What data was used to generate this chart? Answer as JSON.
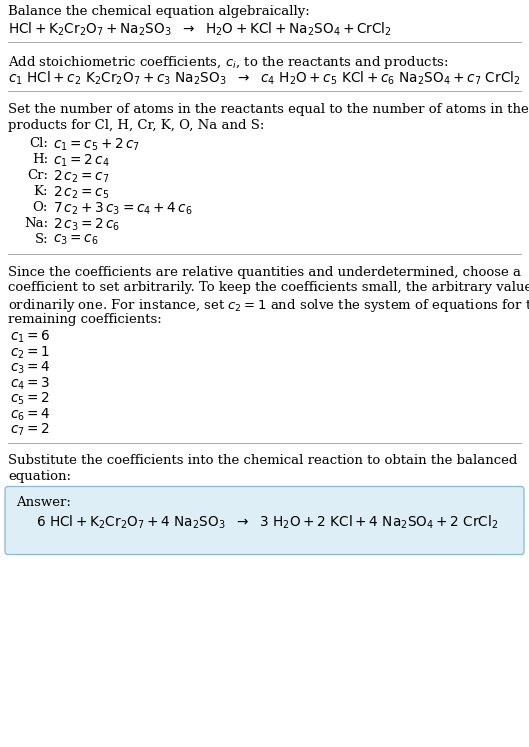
{
  "bg_color": "#ffffff",
  "answer_bg": "#deeef6",
  "answer_border": "#88bbcc",
  "separator_color": "#aaaaaa",
  "fs": 9.5,
  "fs_m": 9.8,
  "lh": 15.5,
  "ml": 8,
  "mr": 521,
  "fig_w": 5.29,
  "fig_h": 7.47,
  "dpi": 100,
  "serif": "DejaVu Serif",
  "s1_header": "Balance the chemical equation algebraically:",
  "s1_eq": "$\\mathrm{HCl + K_2Cr_2O_7 + Na_2SO_3}\\ \\ \\rightarrow\\ \\ \\mathrm{H_2O + KCl + Na_2SO_4 + CrCl_2}$",
  "s2_header": "Add stoichiometric coefficients, $c_i$, to the reactants and products:",
  "s2_eq": "$c_1\\ \\mathrm{HCl} + c_2\\ \\mathrm{K_2Cr_2O_7} + c_3\\ \\mathrm{Na_2SO_3}\\ \\ \\rightarrow\\ \\ c_4\\ \\mathrm{H_2O} + c_5\\ \\mathrm{KCl} + c_6\\ \\mathrm{Na_2SO_4} + c_7\\ \\mathrm{CrCl_2}$",
  "s3_h1": "Set the number of atoms in the reactants equal to the number of atoms in the",
  "s3_h2": "products for Cl, H, Cr, K, O, Na and S:",
  "s3_eqs": [
    {
      "label": "Cl:",
      "eq": "$c_1 = c_5 + 2\\,c_7$"
    },
    {
      "label": "H:",
      "eq": "$c_1 = 2\\,c_4$"
    },
    {
      "label": "Cr:",
      "eq": "$2\\,c_2 = c_7$"
    },
    {
      "label": "K:",
      "eq": "$2\\,c_2 = c_5$"
    },
    {
      "label": "O:",
      "eq": "$7\\,c_2 + 3\\,c_3 = c_4 + 4\\,c_6$"
    },
    {
      "label": "Na:",
      "eq": "$2\\,c_3 = 2\\,c_6$"
    },
    {
      "label": "S:",
      "eq": "$c_3 = c_6$"
    }
  ],
  "s4_para": [
    "Since the coefficients are relative quantities and underdetermined, choose a",
    "coefficient to set arbitrarily. To keep the coefficients small, the arbitrary value is",
    "ordinarily one. For instance, set $c_2 = 1$ and solve the system of equations for the",
    "remaining coefficients:"
  ],
  "s4_coeffs": [
    "$c_1 = 6$",
    "$c_2 = 1$",
    "$c_3 = 4$",
    "$c_4 = 3$",
    "$c_5 = 2$",
    "$c_6 = 4$",
    "$c_7 = 2$"
  ],
  "s5_h1": "Substitute the coefficients into the chemical reaction to obtain the balanced",
  "s5_h2": "equation:",
  "s5_ans_label": "Answer:",
  "s5_ans_eq": "$6\\ \\mathrm{HCl} + \\mathrm{K_2Cr_2O_7} + 4\\ \\mathrm{Na_2SO_3}\\ \\ \\rightarrow\\ \\ 3\\ \\mathrm{H_2O} + 2\\ \\mathrm{KCl} + 4\\ \\mathrm{Na_2SO_4} + 2\\ \\mathrm{CrCl_2}$"
}
